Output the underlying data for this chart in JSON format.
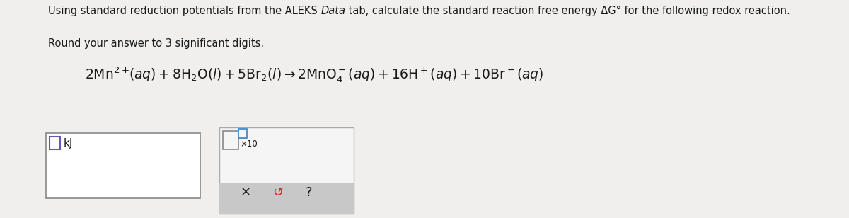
{
  "background_color": "#f0efee",
  "text_color": "#1a1a1a",
  "font_size_main": 10.5,
  "font_size_eq": 13.5,
  "line1_part1": "Using standard reduction potentials from the ALEKS ",
  "line1_italic": "Data",
  "line1_part2": " tab, calculate the standard reaction free energy ΔG° for the following redox reaction.",
  "line2": "Round your answer to 3 significant digits.",
  "kj_label": "kJ",
  "box1_color": "#ffffff",
  "box1_edge": "#888888",
  "box2_color": "#f5f5f5",
  "box2_edge": "#aaaaaa",
  "toolbar_color": "#c8c8c8",
  "small_sq_edge": "#6655bb",
  "tiny_sq_edge": "#4488cc"
}
